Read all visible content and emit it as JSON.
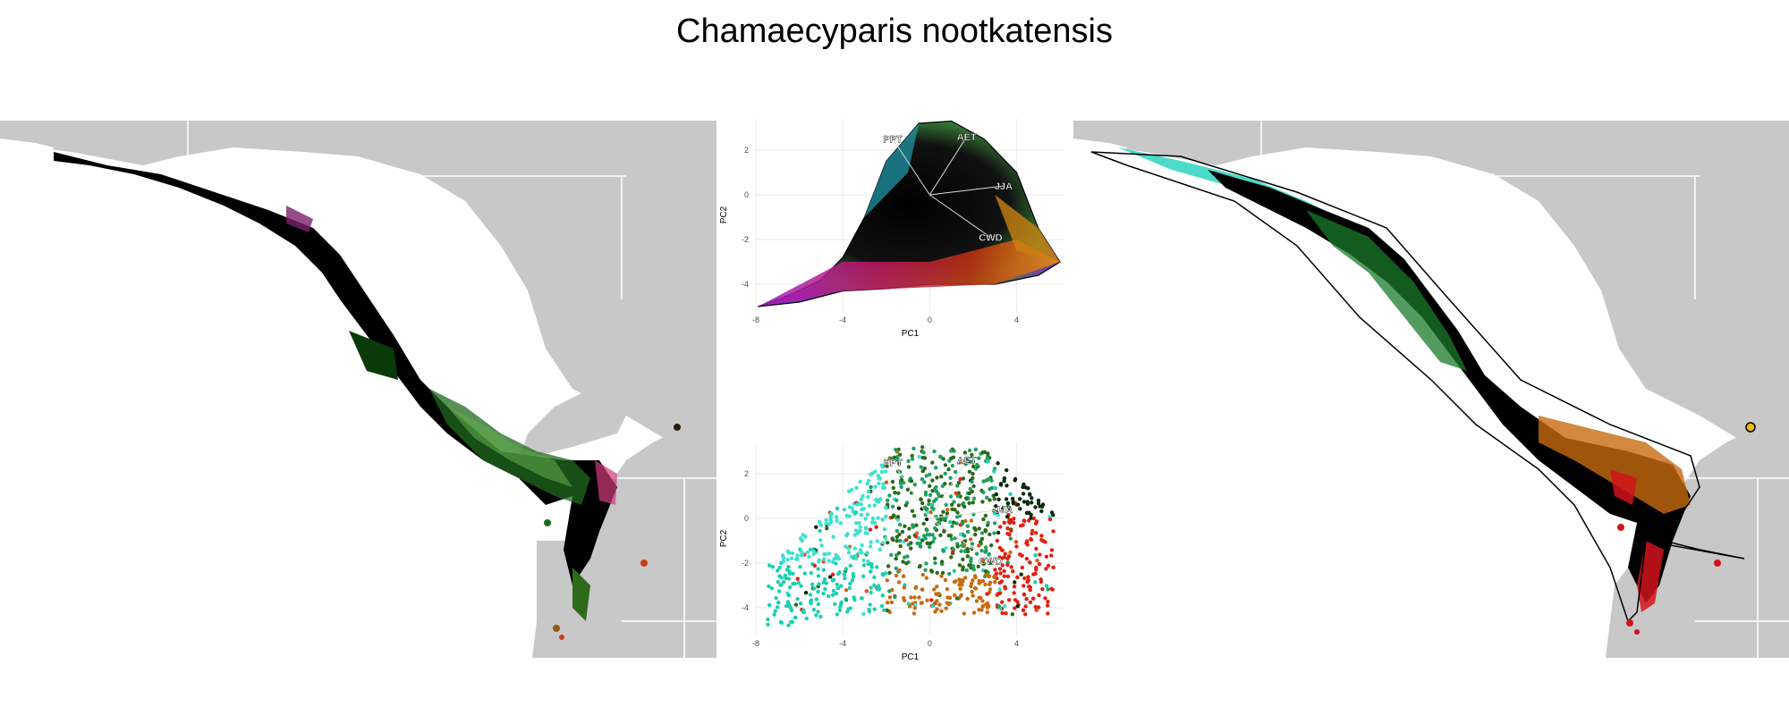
{
  "title": "Chamaecyparis nootkatensis",
  "colors": {
    "land": "#c8c8c8",
    "ocean": "#ffffff",
    "border": "#ffffff",
    "grid": "#ebebeb"
  },
  "chart_data": [
    {
      "type": "map",
      "panel": "left",
      "description_colors": [
        "#000000",
        "#1f6a1f",
        "#5fa84a",
        "#7a1f6a",
        "#d23a7a",
        "#8a4a10"
      ]
    },
    {
      "type": "scatter",
      "panel": "top",
      "xlabel": "PC1",
      "ylabel": "PC2",
      "xlim": [
        -8,
        6.2
      ],
      "ylim": [
        -5.2,
        3.4
      ],
      "xticks": [
        -8,
        -4,
        0,
        4
      ],
      "yticks": [
        2,
        0,
        -2,
        -4
      ],
      "vectors": [
        {
          "label": "PPT",
          "x": -1.7,
          "y": 2.5
        },
        {
          "label": "AET",
          "x": 1.7,
          "y": 2.6
        },
        {
          "label": "JJA",
          "x": 3.4,
          "y": 0.4
        },
        {
          "label": "CWD",
          "x": 2.8,
          "y": -1.9
        }
      ],
      "grid": true
    },
    {
      "type": "scatter",
      "panel": "bottom",
      "xlabel": "PC1",
      "ylabel": "PC2",
      "xlim": [
        -8,
        6.2
      ],
      "ylim": [
        -5.2,
        3.4
      ],
      "xticks": [
        -8,
        -4,
        0,
        4
      ],
      "yticks": [
        2,
        0,
        -2,
        -4
      ],
      "vectors": [
        {
          "label": "PPT",
          "x": -1.7,
          "y": 2.5
        },
        {
          "label": "AET",
          "x": 1.7,
          "y": 2.6
        },
        {
          "label": "JJA",
          "x": 3.4,
          "y": 0.4
        },
        {
          "label": "CWD",
          "x": 2.8,
          "y": -1.9
        }
      ],
      "grid": true
    },
    {
      "type": "map",
      "panel": "right",
      "description_colors": [
        "#000000",
        "#1a7a2a",
        "#3ad6c2",
        "#c86a10",
        "#d0141a",
        "#e6c000"
      ]
    }
  ]
}
